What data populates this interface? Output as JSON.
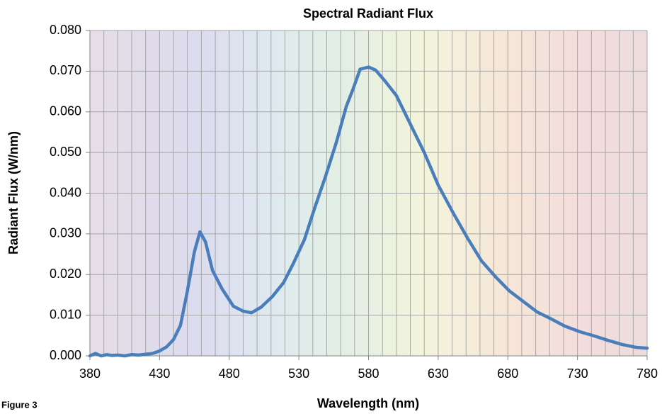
{
  "chart_data": {
    "type": "line",
    "title": "Spectral Radiant Flux",
    "xlabel": "Wavelength (nm)",
    "ylabel": "Radiant Flux (W/nm)",
    "annotation": "Figure 3",
    "x": [
      380,
      384,
      388,
      392,
      396,
      400,
      405,
      410,
      415,
      420,
      425,
      430,
      435,
      440,
      445,
      450,
      455,
      459,
      463,
      468,
      475,
      483,
      490,
      496,
      503,
      511,
      519,
      526,
      534,
      541,
      549,
      557,
      564,
      569,
      574,
      580,
      585,
      592,
      600,
      610,
      620,
      630,
      641,
      651,
      661,
      671,
      681,
      691,
      701,
      711,
      721,
      732,
      742,
      752,
      762,
      772,
      780
    ],
    "series": [
      {
        "name": "Radiant Flux",
        "color": "#4a7ebb",
        "values": [
          0,
          0.0006,
          0,
          0.0003,
          0.0001,
          0.0002,
          0,
          0.0003,
          0.0002,
          0.0004,
          0.0006,
          0.0012,
          0.0022,
          0.004,
          0.0075,
          0.016,
          0.0256,
          0.0305,
          0.028,
          0.021,
          0.0164,
          0.0122,
          0.011,
          0.0106,
          0.012,
          0.0146,
          0.018,
          0.0227,
          0.0286,
          0.036,
          0.044,
          0.0526,
          0.0613,
          0.0657,
          0.0705,
          0.071,
          0.0703,
          0.0675,
          0.064,
          0.057,
          0.05,
          0.042,
          0.035,
          0.029,
          0.0234,
          0.0195,
          0.016,
          0.0134,
          0.0108,
          0.0091,
          0.0073,
          0.0059,
          0.0049,
          0.0038,
          0.0028,
          0.0021,
          0.0019
        ]
      }
    ],
    "xlim": [
      380,
      780
    ],
    "ylim": [
      0,
      0.08
    ],
    "xticks": [
      380,
      430,
      480,
      530,
      580,
      630,
      680,
      730,
      780
    ],
    "x_gridlines": [
      380,
      390,
      400,
      410,
      420,
      430,
      440,
      450,
      460,
      470,
      480,
      490,
      500,
      510,
      520,
      530,
      540,
      550,
      560,
      570,
      580,
      590,
      600,
      610,
      620,
      630,
      640,
      650,
      660,
      670,
      680,
      690,
      700,
      710,
      720,
      730,
      740,
      750,
      760,
      770,
      780
    ],
    "yticks": [
      {
        "value": 0,
        "label": "0.000"
      },
      {
        "value": 0.01,
        "label": "0.010"
      },
      {
        "value": 0.02,
        "label": "0.020"
      },
      {
        "value": 0.03,
        "label": "0.030"
      },
      {
        "value": 0.04,
        "label": "0.040"
      },
      {
        "value": 0.05,
        "label": "0.050"
      },
      {
        "value": 0.06,
        "label": "0.060"
      },
      {
        "value": 0.07,
        "label": "0.070"
      },
      {
        "value": 0.08,
        "label": "0.080"
      }
    ],
    "grid": true
  }
}
